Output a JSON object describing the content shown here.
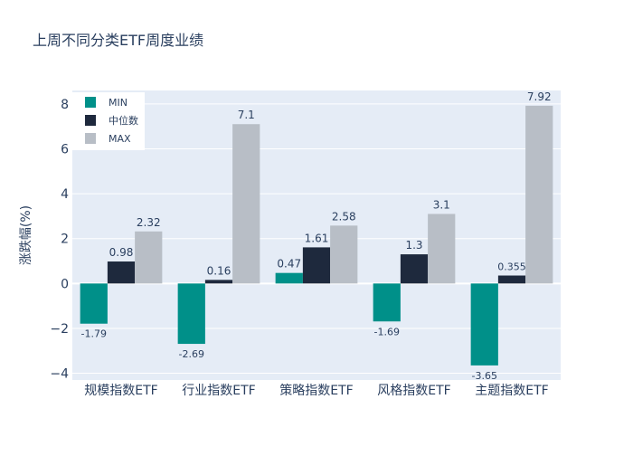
{
  "chart_data": {
    "type": "bar",
    "title": "上周不同分类ETF周度业绩",
    "ylabel": "涨跌幅(%)",
    "xlabel": "",
    "categories": [
      "规模指数ETF",
      "行业指数ETF",
      "策略指数ETF",
      "风格指数ETF",
      "主题指数ETF"
    ],
    "series": [
      {
        "name": "MIN",
        "color": "#009089",
        "values": [
          -1.79,
          -2.69,
          0.47,
          -1.69,
          -3.65
        ],
        "labels": [
          "-1.79",
          "-2.69",
          "0.47",
          "-1.69",
          "-3.65"
        ]
      },
      {
        "name": "中位数",
        "color": "#1e293d",
        "values": [
          0.98,
          0.16,
          1.61,
          1.3,
          0.355
        ],
        "labels": [
          "0.98",
          "0.16",
          "1.61",
          "1.3",
          "0.355"
        ]
      },
      {
        "name": "MAX",
        "color": "#b8bec6",
        "values": [
          2.32,
          7.1,
          2.58,
          3.1,
          7.92
        ],
        "labels": [
          "2.32",
          "7.1",
          "2.58",
          "3.1",
          "7.92"
        ]
      }
    ],
    "ylim": [
      -4.3,
      8.6
    ],
    "yticks": [
      -4,
      -2,
      0,
      2,
      4,
      6,
      8
    ],
    "ytick_labels": [
      "−4",
      "−2",
      "0",
      "2",
      "4",
      "6",
      "8"
    ],
    "grid": true,
    "legend": "top-left",
    "plot_bgcolor": "#e5ecf6"
  }
}
